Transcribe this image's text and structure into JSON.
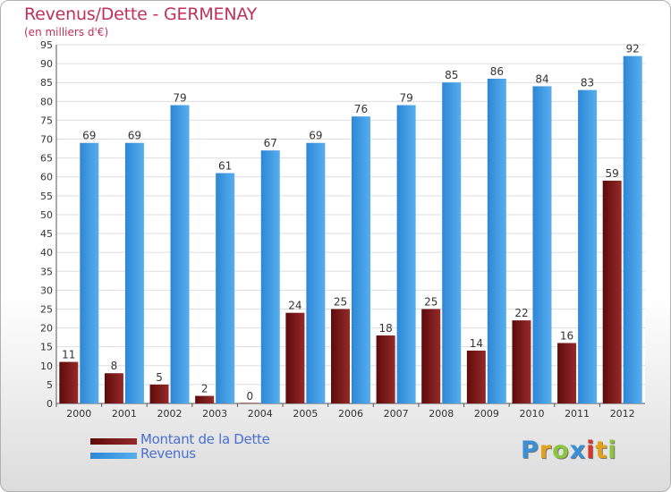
{
  "chart_data": {
    "type": "bar",
    "title": "Revenus/Dette - GERMENAY",
    "subtitle": "(en milliers d'€)",
    "categories": [
      "2000",
      "2001",
      "2002",
      "2003",
      "2004",
      "2005",
      "2006",
      "2007",
      "2008",
      "2009",
      "2010",
      "2011",
      "2012"
    ],
    "series": [
      {
        "name": "Montant de la Dette",
        "values": [
          11,
          8,
          5,
          2,
          0,
          24,
          25,
          18,
          25,
          14,
          22,
          16,
          59
        ],
        "color": "#7a1010"
      },
      {
        "name": "Revenus",
        "values": [
          69,
          69,
          79,
          61,
          67,
          69,
          76,
          79,
          85,
          86,
          84,
          83,
          92
        ],
        "color": "#3d9ae2"
      }
    ],
    "ylim": [
      0,
      95
    ],
    "yticks": [
      0,
      5,
      10,
      15,
      20,
      25,
      30,
      35,
      40,
      45,
      50,
      55,
      60,
      65,
      70,
      75,
      80,
      85,
      90,
      95
    ],
    "grid": true,
    "legend_position": "bottom-left"
  },
  "logo": {
    "text": "Proxiti",
    "colors": [
      "#3b8fd6",
      "#e3a21a",
      "#8cc63f",
      "#3b8fd6",
      "#d9342b",
      "#e3a21a",
      "#8cc63f"
    ]
  }
}
